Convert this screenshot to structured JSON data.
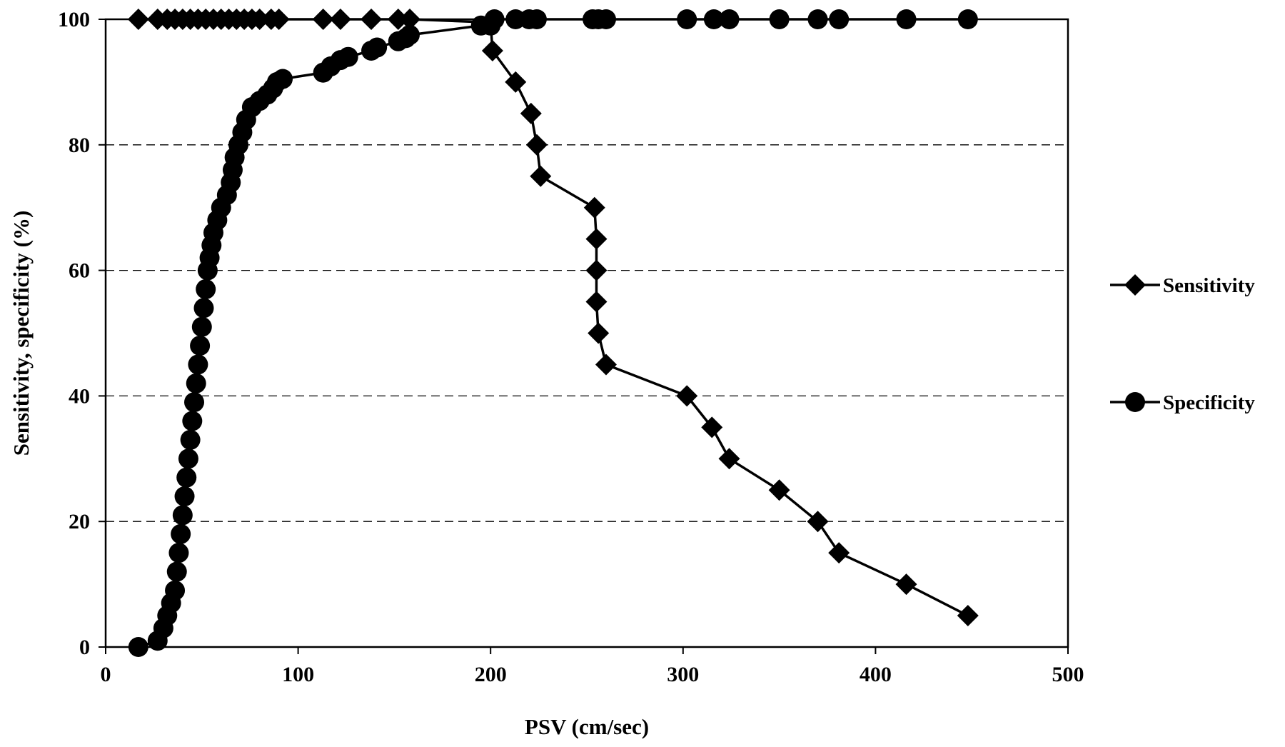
{
  "chart_data": {
    "type": "line",
    "title": "",
    "xlabel": "PSV (cm/sec)",
    "ylabel": "Sensitivity, specificity (%)",
    "xlim": [
      0,
      500
    ],
    "ylim": [
      0,
      100
    ],
    "xticks": [
      0,
      100,
      200,
      300,
      400,
      500
    ],
    "yticks": [
      0,
      20,
      40,
      60,
      80,
      100
    ],
    "grid": "horizontal dashed",
    "legend_position": "right",
    "series": [
      {
        "name": "Sensitivity",
        "marker": "diamond",
        "points": [
          [
            17,
            100
          ],
          [
            27,
            100
          ],
          [
            32,
            100
          ],
          [
            36,
            100
          ],
          [
            40,
            100
          ],
          [
            44,
            100
          ],
          [
            48,
            100
          ],
          [
            52,
            100
          ],
          [
            56,
            100
          ],
          [
            60,
            100
          ],
          [
            64,
            100
          ],
          [
            68,
            100
          ],
          [
            72,
            100
          ],
          [
            76,
            100
          ],
          [
            80,
            100
          ],
          [
            86,
            100
          ],
          [
            90,
            100
          ],
          [
            113,
            100
          ],
          [
            122,
            100
          ],
          [
            138,
            100
          ],
          [
            152,
            100
          ],
          [
            158,
            100
          ],
          [
            200,
            99.5
          ],
          [
            201,
            95
          ],
          [
            213,
            90
          ],
          [
            221,
            85
          ],
          [
            224,
            80
          ],
          [
            226,
            75
          ],
          [
            254,
            70
          ],
          [
            255,
            65
          ],
          [
            255,
            60
          ],
          [
            255,
            55
          ],
          [
            256,
            50
          ],
          [
            260,
            45
          ],
          [
            302,
            40
          ],
          [
            315,
            35
          ],
          [
            324,
            30
          ],
          [
            350,
            25
          ],
          [
            370,
            20
          ],
          [
            381,
            15
          ],
          [
            416,
            10
          ],
          [
            448,
            5
          ]
        ]
      },
      {
        "name": "Specificity",
        "marker": "circle",
        "points": [
          [
            17,
            0
          ],
          [
            27,
            1
          ],
          [
            30,
            3
          ],
          [
            32,
            5
          ],
          [
            34,
            7
          ],
          [
            36,
            9
          ],
          [
            37,
            12
          ],
          [
            38,
            15
          ],
          [
            39,
            18
          ],
          [
            40,
            21
          ],
          [
            41,
            24
          ],
          [
            42,
            27
          ],
          [
            43,
            30
          ],
          [
            44,
            33
          ],
          [
            45,
            36
          ],
          [
            46,
            39
          ],
          [
            47,
            42
          ],
          [
            48,
            45
          ],
          [
            49,
            48
          ],
          [
            50,
            51
          ],
          [
            51,
            54
          ],
          [
            52,
            57
          ],
          [
            53,
            60
          ],
          [
            54,
            62
          ],
          [
            55,
            64
          ],
          [
            56,
            66
          ],
          [
            58,
            68
          ],
          [
            60,
            70
          ],
          [
            63,
            72
          ],
          [
            65,
            74
          ],
          [
            66,
            76
          ],
          [
            67,
            78
          ],
          [
            69,
            80
          ],
          [
            71,
            82
          ],
          [
            73,
            84
          ],
          [
            76,
            86
          ],
          [
            80,
            87
          ],
          [
            84,
            88
          ],
          [
            87,
            89
          ],
          [
            89,
            90
          ],
          [
            92,
            90.5
          ],
          [
            113,
            91.5
          ],
          [
            117,
            92.5
          ],
          [
            122,
            93.5
          ],
          [
            126,
            94
          ],
          [
            138,
            95
          ],
          [
            141,
            95.5
          ],
          [
            152,
            96.5
          ],
          [
            156,
            97
          ],
          [
            158,
            97.5
          ],
          [
            195,
            99
          ],
          [
            200,
            99
          ],
          [
            202,
            100
          ],
          [
            213,
            100
          ],
          [
            220,
            100
          ],
          [
            224,
            100
          ],
          [
            253,
            100
          ],
          [
            256,
            100
          ],
          [
            260,
            100
          ],
          [
            302,
            100
          ],
          [
            316,
            100
          ],
          [
            324,
            100
          ],
          [
            350,
            100
          ],
          [
            370,
            100
          ],
          [
            381,
            100
          ],
          [
            416,
            100
          ],
          [
            448,
            100
          ]
        ]
      }
    ]
  }
}
